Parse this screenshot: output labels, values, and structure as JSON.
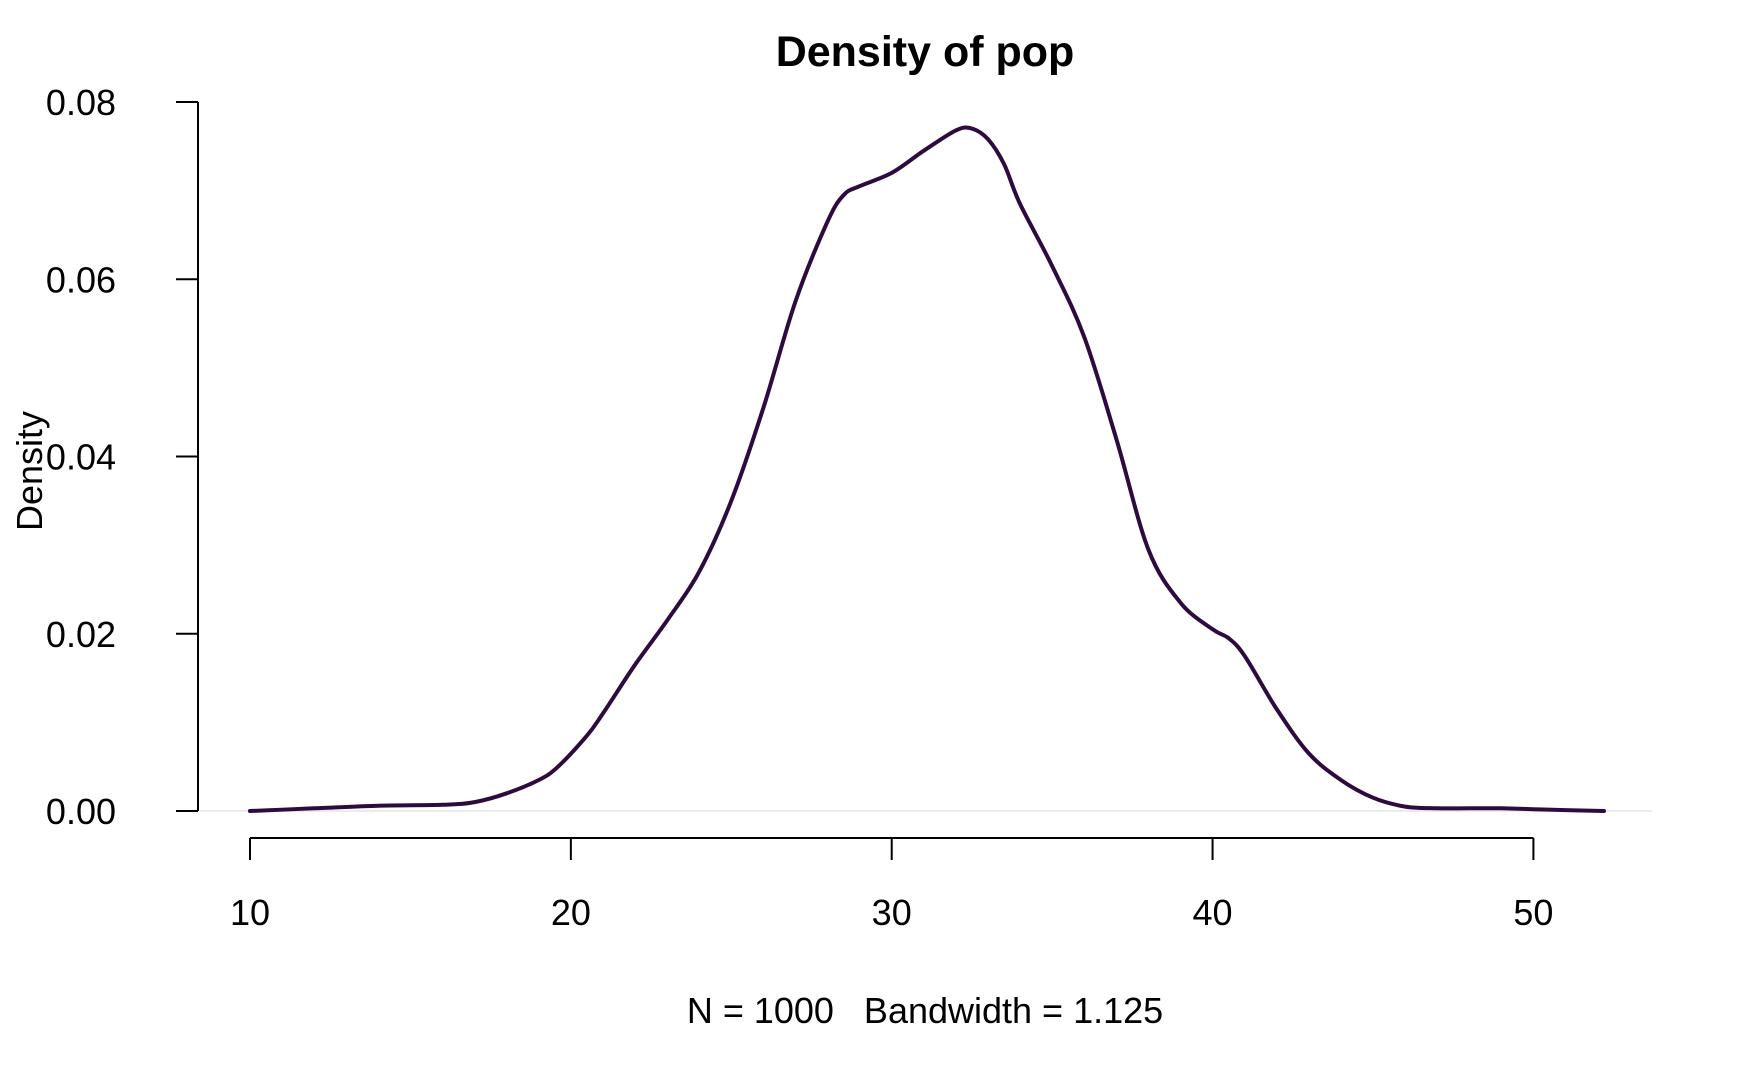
{
  "chart_data": {
    "type": "line",
    "title": "Density of pop",
    "xlabel": "N = 1000   Bandwidth = 1.125",
    "ylabel": "Density",
    "xlim": [
      10,
      52.2
    ],
    "ylim": [
      0,
      0.08
    ],
    "x_ticks": [
      10,
      20,
      30,
      40,
      50
    ],
    "x_tick_labels": [
      "10",
      "20",
      "30",
      "40",
      "50"
    ],
    "y_ticks": [
      0,
      0.02,
      0.04,
      0.06,
      0.08
    ],
    "y_tick_labels": [
      "0.00",
      "0.02",
      "0.04",
      "0.06",
      "0.08"
    ],
    "grid": false,
    "zero_line": true,
    "series": [
      {
        "color": "#2d0b3f",
        "x": [
          10.0,
          12.0,
          14.0,
          16.0,
          17.0,
          18.0,
          19.0,
          19.6,
          20.5,
          21.0,
          22.0,
          23.0,
          24.0,
          25.0,
          26.0,
          27.0,
          28.0,
          28.5,
          29.0,
          30.0,
          31.0,
          32.0,
          32.5,
          33.0,
          33.5,
          34.0,
          35.0,
          36.0,
          37.0,
          38.0,
          39.0,
          40.0,
          40.5,
          41.0,
          42.0,
          43.0,
          44.0,
          45.0,
          46.0,
          47.0,
          48.0,
          49.0,
          50.0,
          51.0,
          52.2
        ],
        "y": [
          0.0,
          0.0003,
          0.0006,
          0.0007,
          0.001,
          0.002,
          0.0035,
          0.005,
          0.0085,
          0.011,
          0.0165,
          0.0215,
          0.027,
          0.035,
          0.0455,
          0.0575,
          0.0665,
          0.0695,
          0.0705,
          0.072,
          0.0745,
          0.0768,
          0.077,
          0.0758,
          0.073,
          0.0685,
          0.0615,
          0.0535,
          0.042,
          0.0295,
          0.0235,
          0.0205,
          0.0195,
          0.0175,
          0.0115,
          0.0065,
          0.0035,
          0.0015,
          0.0005,
          0.0003,
          0.0003,
          0.0003,
          0.0002,
          0.0001,
          0.0
        ]
      }
    ]
  }
}
